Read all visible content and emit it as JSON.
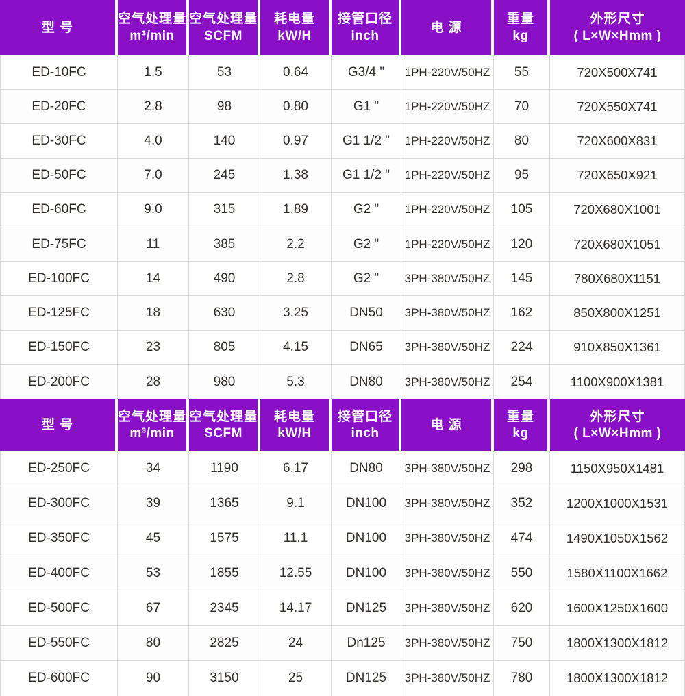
{
  "colors": {
    "header_bg": "#8a10c8",
    "header_text": "#ffffff",
    "grid_line": "#d9d9d9",
    "body_text": "#332f2d",
    "row_bg": "#ffffff"
  },
  "chart_data": {
    "type": "table",
    "title": "",
    "columns": [
      {
        "key": "model",
        "line1": "型 号",
        "line2": ""
      },
      {
        "key": "flow-m3min",
        "line1": "空气处理量",
        "line2": "m³/min"
      },
      {
        "key": "flow-scfm",
        "line1": "空气处理量",
        "line2": "SCFM"
      },
      {
        "key": "power-kwh",
        "line1": "耗电量",
        "line2": "kW/H"
      },
      {
        "key": "pipe-inch",
        "line1": "接管口径",
        "line2": "inch"
      },
      {
        "key": "power-supply",
        "line1": "电 源",
        "line2": ""
      },
      {
        "key": "weight-kg",
        "line1": "重量",
        "line2": "kg"
      },
      {
        "key": "dimensions",
        "line1": "外形尺寸",
        "line2": "( L×W×Hmm )"
      }
    ],
    "sections": [
      {
        "rows": [
          [
            "ED-10FC",
            "1.5",
            "53",
            "0.64",
            "G3/4 \"",
            "1PH-220V/50HZ",
            "55",
            "720X500X741"
          ],
          [
            "ED-20FC",
            "2.8",
            "98",
            "0.80",
            "G1 \"",
            "1PH-220V/50HZ",
            "70",
            "720X550X741"
          ],
          [
            "ED-30FC",
            "4.0",
            "140",
            "0.97",
            "G1 1/2 \"",
            "1PH-220V/50HZ",
            "80",
            "720X600X831"
          ],
          [
            "ED-50FC",
            "7.0",
            "245",
            "1.38",
            "G1 1/2 \"",
            "1PH-220V/50HZ",
            "95",
            "720X650X921"
          ],
          [
            "ED-60FC",
            "9.0",
            "315",
            "1.89",
            "G2 \"",
            "1PH-220V/50HZ",
            "105",
            "720X680X1001"
          ],
          [
            "ED-75FC",
            "11",
            "385",
            "2.2",
            "G2 \"",
            "1PH-220V/50HZ",
            "120",
            "720X680X1051"
          ],
          [
            "ED-100FC",
            "14",
            "490",
            "2.8",
            "G2 \"",
            "3PH-380V/50HZ",
            "145",
            "780X680X1151"
          ],
          [
            "ED-125FC",
            "18",
            "630",
            "3.25",
            "DN50",
            "3PH-380V/50HZ",
            "162",
            "850X800X1251"
          ],
          [
            "ED-150FC",
            "23",
            "805",
            "4.15",
            "DN65",
            "3PH-380V/50HZ",
            "224",
            "910X850X1361"
          ],
          [
            "ED-200FC",
            "28",
            "980",
            "5.3",
            "DN80",
            "3PH-380V/50HZ",
            "254",
            "1100X900X1381"
          ]
        ]
      },
      {
        "rows": [
          [
            "ED-250FC",
            "34",
            "1190",
            "6.17",
            "DN80",
            "3PH-380V/50HZ",
            "298",
            "1150X950X1481"
          ],
          [
            "ED-300FC",
            "39",
            "1365",
            "9.1",
            "DN100",
            "3PH-380V/50HZ",
            "352",
            "1200X1000X1531"
          ],
          [
            "ED-350FC",
            "45",
            "1575",
            "11.1",
            "DN100",
            "3PH-380V/50HZ",
            "474",
            "1490X1050X1562"
          ],
          [
            "ED-400FC",
            "53",
            "1855",
            "12.55",
            "DN100",
            "3PH-380V/50HZ",
            "550",
            "1580X1100X1662"
          ],
          [
            "ED-500FC",
            "67",
            "2345",
            "14.17",
            "DN125",
            "3PH-380V/50HZ",
            "620",
            "1600X1250X1600"
          ],
          [
            "ED-550FC",
            "80",
            "2825",
            "24",
            "Dn125",
            "3PH-380V/50HZ",
            "750",
            "1800X1300X1812"
          ],
          [
            "ED-600FC",
            "90",
            "3150",
            "25",
            "DN125",
            "3PH-380V/50HZ",
            "780",
            "1800X1300X1812"
          ]
        ]
      }
    ]
  }
}
